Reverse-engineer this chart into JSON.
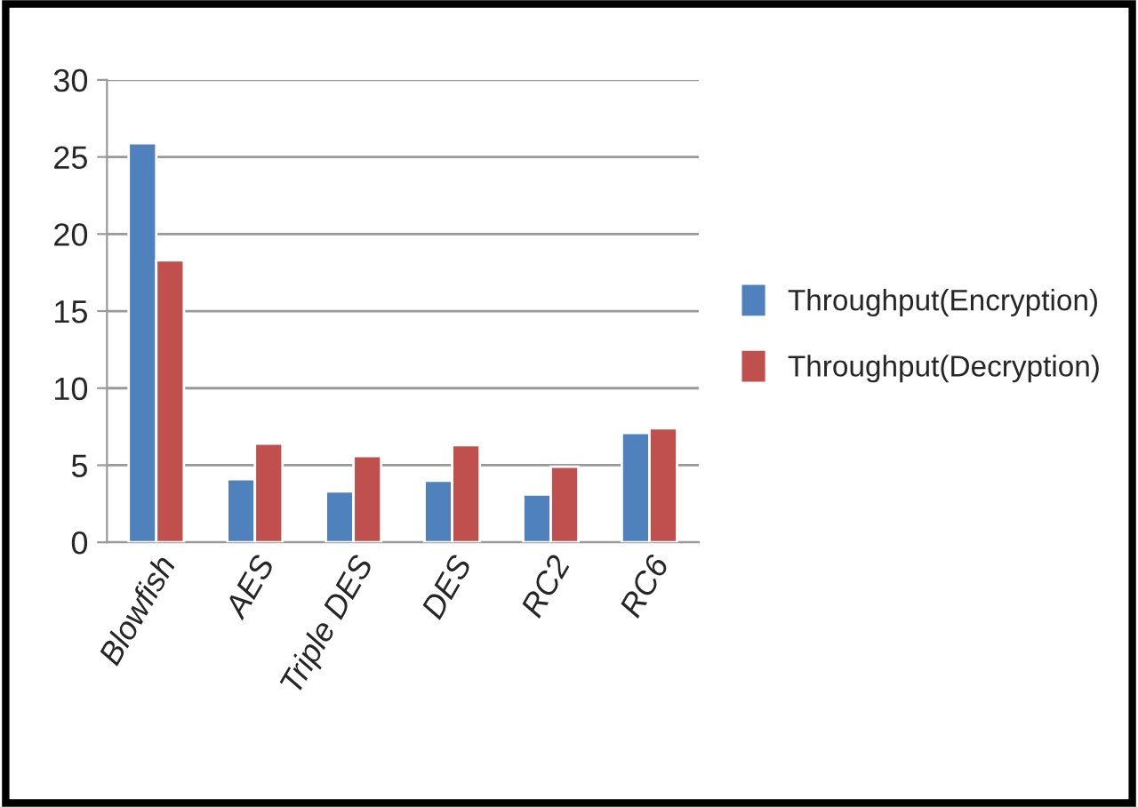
{
  "chart_data": {
    "type": "bar",
    "categories": [
      "Blowfish",
      "AES",
      "Triple DES",
      "DES",
      "RC2",
      "RC6"
    ],
    "series": [
      {
        "name": "Throughput(Encryption)",
        "color": "#4f81bd",
        "values": [
          25.9,
          4.1,
          3.3,
          4.0,
          3.1,
          7.1
        ]
      },
      {
        "name": "Throughput(Decryption)",
        "color": "#c0504d",
        "values": [
          18.3,
          6.4,
          5.6,
          6.3,
          4.9,
          7.4
        ]
      }
    ],
    "ylim": [
      0,
      30
    ],
    "yticks": [
      0,
      5,
      10,
      15,
      20,
      25,
      30
    ],
    "grid": "y",
    "legend": "right"
  }
}
